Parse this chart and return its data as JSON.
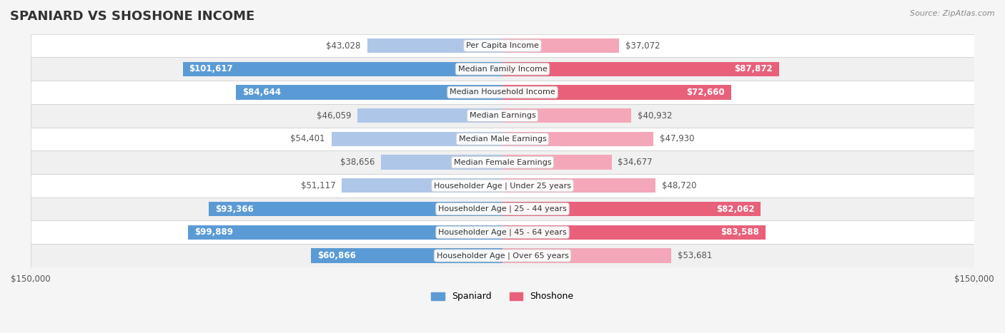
{
  "title": "SPANIARD VS SHOSHONE INCOME",
  "source": "Source: ZipAtlas.com",
  "categories": [
    "Per Capita Income",
    "Median Family Income",
    "Median Household Income",
    "Median Earnings",
    "Median Male Earnings",
    "Median Female Earnings",
    "Householder Age | Under 25 years",
    "Householder Age | 25 - 44 years",
    "Householder Age | 45 - 64 years",
    "Householder Age | Over 65 years"
  ],
  "spaniard_values": [
    43028,
    101617,
    84644,
    46059,
    54401,
    38656,
    51117,
    93366,
    99889,
    60866
  ],
  "shoshone_values": [
    37072,
    87872,
    72660,
    40932,
    47930,
    34677,
    48720,
    82062,
    83588,
    53681
  ],
  "spaniard_labels": [
    "$43,028",
    "$101,617",
    "$84,644",
    "$46,059",
    "$54,401",
    "$38,656",
    "$51,117",
    "$93,366",
    "$99,889",
    "$60,866"
  ],
  "shoshone_labels": [
    "$37,072",
    "$87,872",
    "$72,660",
    "$40,932",
    "$47,930",
    "$34,677",
    "$48,720",
    "$82,062",
    "$83,588",
    "$53,681"
  ],
  "max_value": 150000,
  "spaniard_color_light": "#aec6e8",
  "spaniard_color_dark": "#5b9bd5",
  "shoshone_color_light": "#f4a7b9",
  "shoshone_color_dark": "#e8607a",
  "bg_color": "#f5f5f5",
  "row_bg": "#ffffff",
  "row_bg_alt": "#f0f0f0",
  "title_fontsize": 13,
  "label_fontsize": 8.5,
  "legend_label_spaniard": "Spaniard",
  "legend_label_shoshone": "Shoshone"
}
